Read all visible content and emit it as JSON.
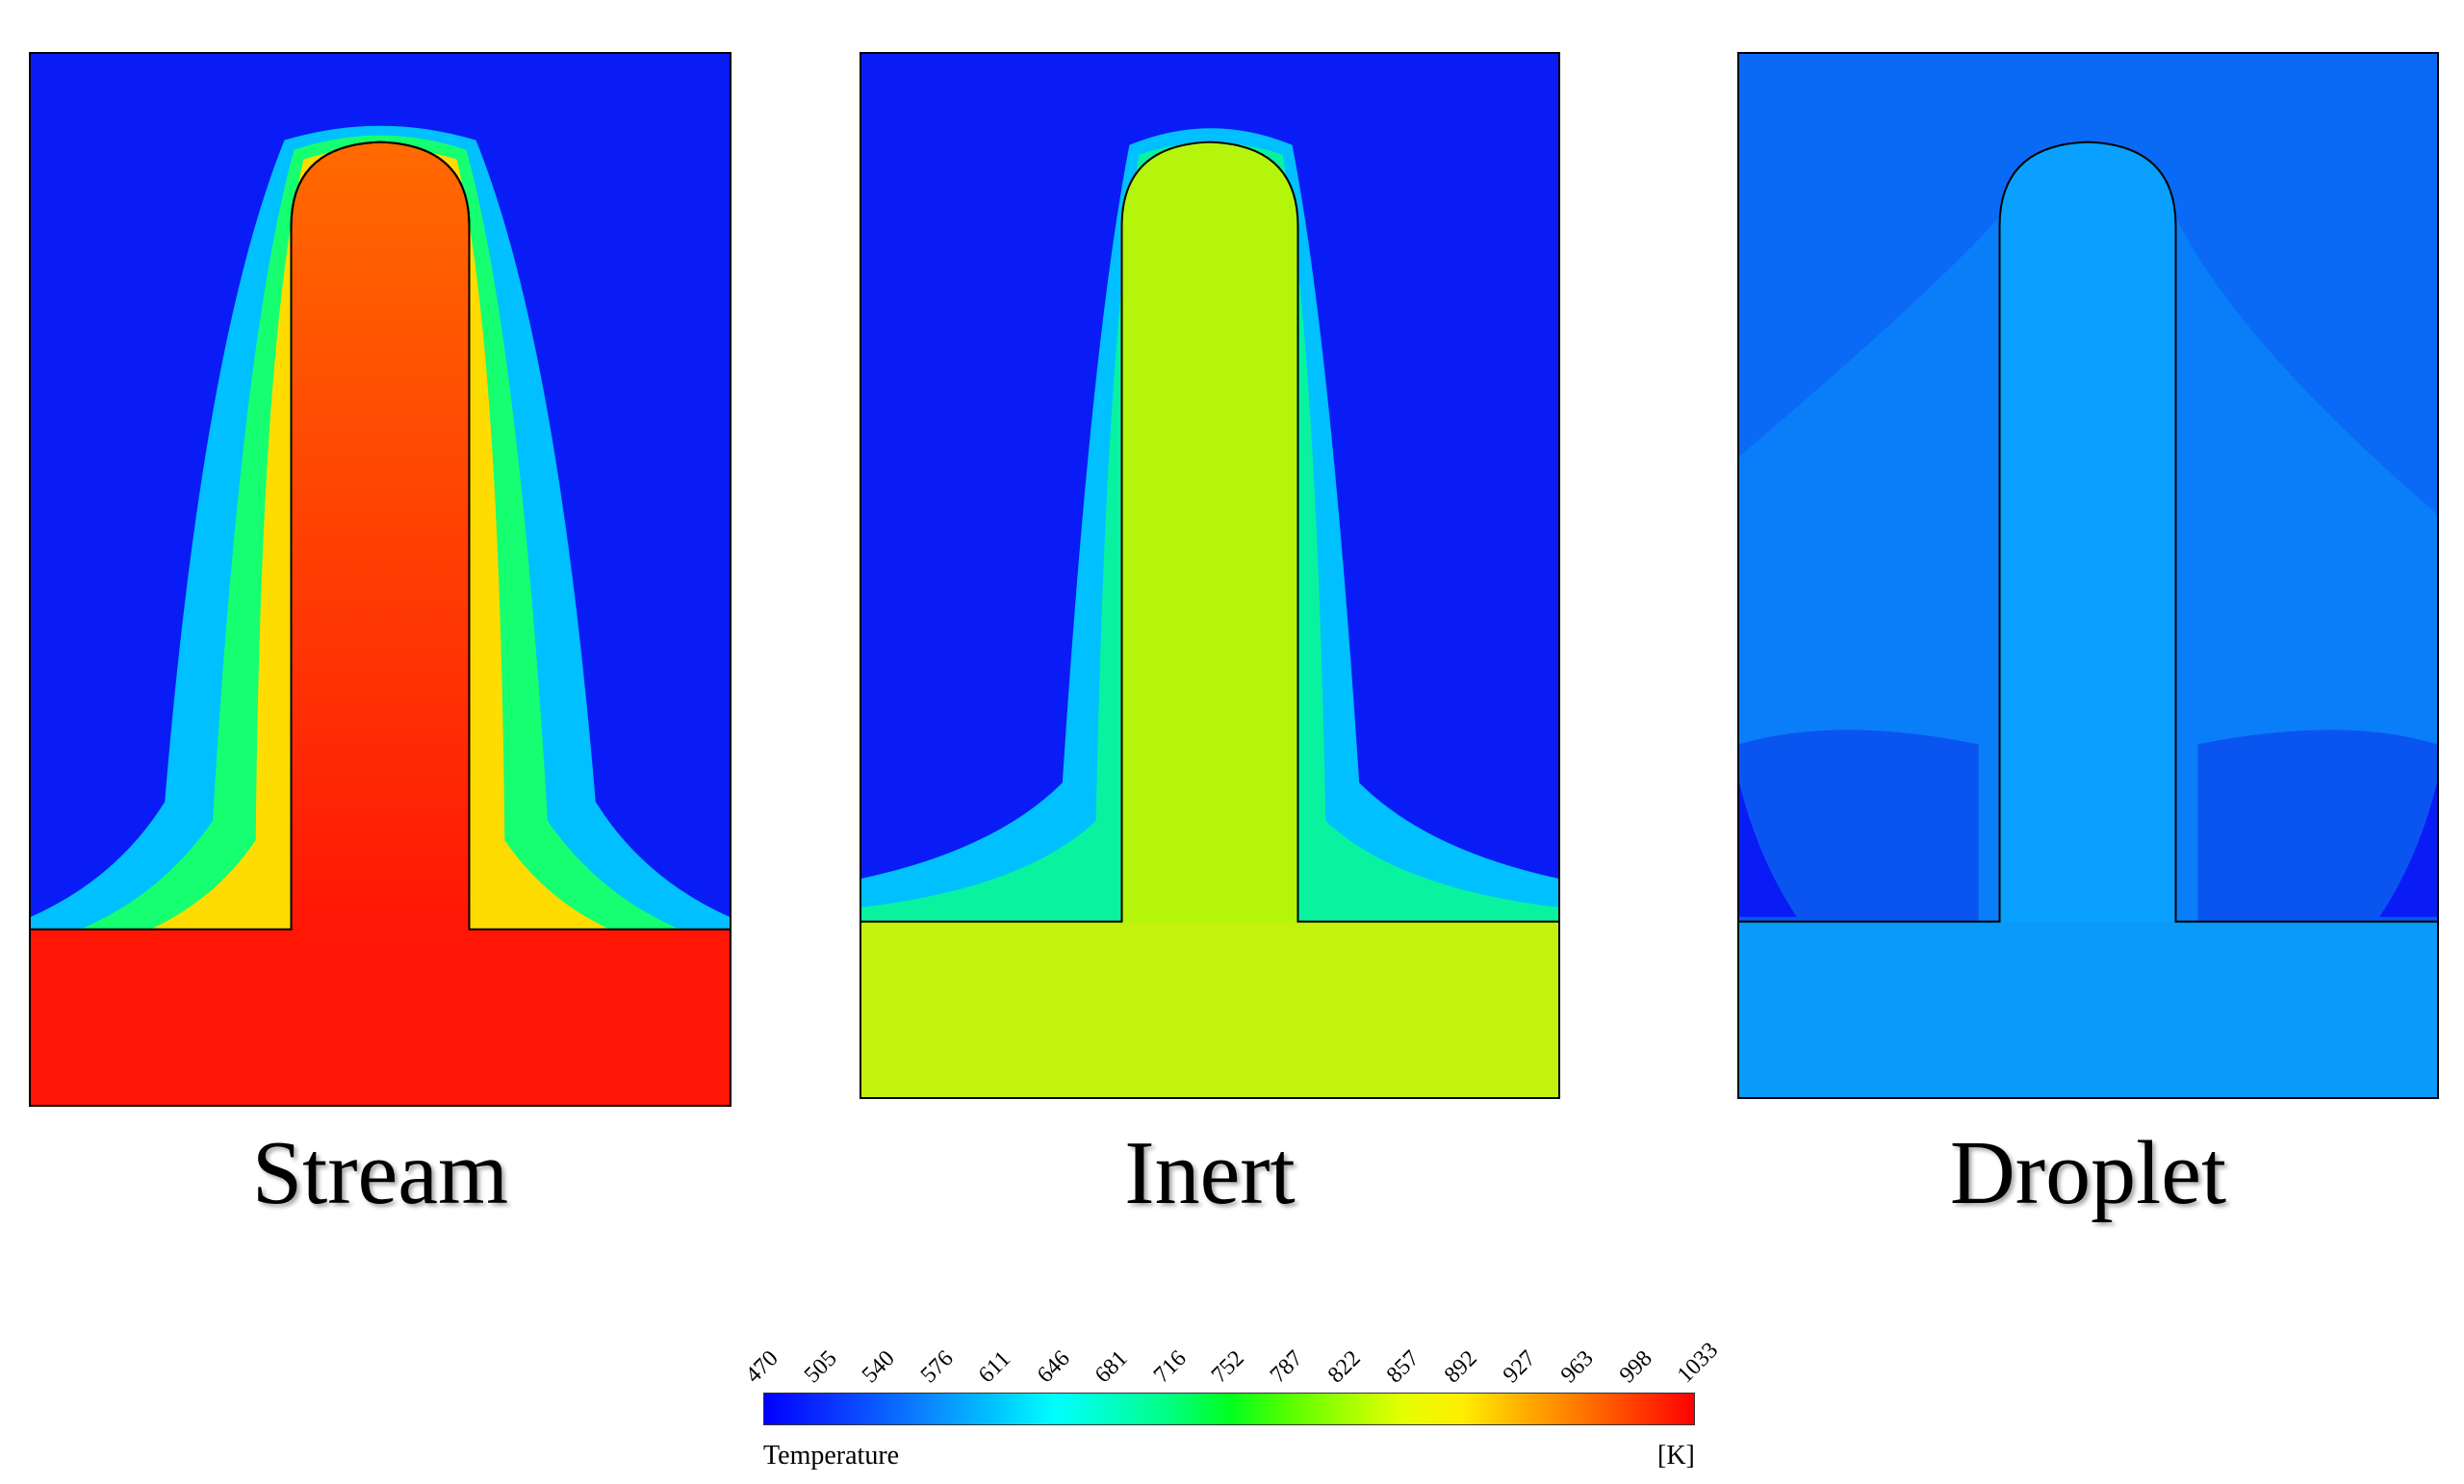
{
  "panels": [
    {
      "caption": "Stream",
      "ambient": "#0a1cf5",
      "body": "#ff3d05",
      "tip": "#ff6a00",
      "base": "#ff1605",
      "wall": "#15ff70"
    },
    {
      "caption": "Inert",
      "ambient": "#0a1cf5",
      "body": "#b5f50c",
      "tip": "#9aff00",
      "base": "#c4f20f",
      "wall": "#08f2a0"
    },
    {
      "caption": "Droplet",
      "ambient": "#0b6af5",
      "body": "#0aa0ff",
      "tip": "#0aa0ff",
      "base": "#0a9af8",
      "wall": "#0a55f0"
    }
  ],
  "colorbar": {
    "title": "Temperature",
    "unit": "[K]",
    "ticks": [
      "470",
      "505",
      "540",
      "576",
      "611",
      "646",
      "681",
      "716",
      "752",
      "787",
      "822",
      "857",
      "892",
      "927",
      "963",
      "998",
      "1033"
    ],
    "colors": [
      "#0000ff",
      "#0a2cff",
      "#0a5cff",
      "#0a90ff",
      "#00c6ff",
      "#00ffff",
      "#00ffc2",
      "#00ff80",
      "#00ff20",
      "#55ff00",
      "#a2ff00",
      "#e6ff00",
      "#ffee00",
      "#ffb200",
      "#ff7a00",
      "#ff3c00",
      "#ff0000"
    ]
  }
}
